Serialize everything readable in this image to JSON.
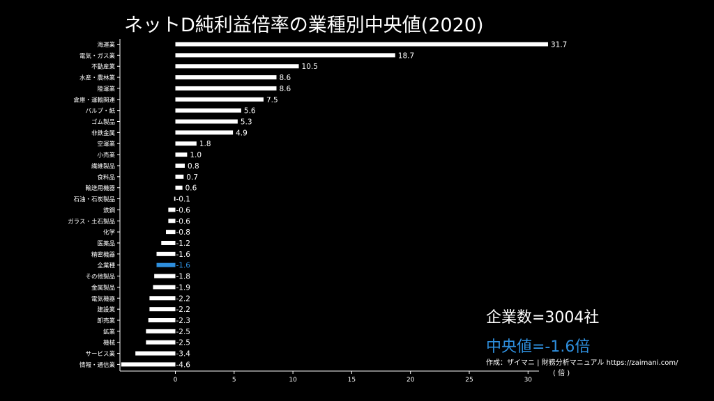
{
  "title": "ネットD純利益倍率の業種別中央値(2020)",
  "stats": {
    "company_count": "企業数=3004社",
    "median": "中央値=-1.6倍"
  },
  "credit": "作成：ザイマニ | 財務分析マニュアル https://zaimani.com/",
  "unit_label": "( 倍 )",
  "colors": {
    "background": "#000000",
    "bar": "#ffffff",
    "highlight": "#2e8fde"
  },
  "chart_data": {
    "type": "bar",
    "orientation": "horizontal",
    "highlight_category": "全業種",
    "categories": [
      "海運業",
      "電気・ガス業",
      "不動産業",
      "水産・農林業",
      "陸運業",
      "倉庫・運輸関連",
      "パルプ・紙",
      "ゴム製品",
      "非鉄金属",
      "空運業",
      "小売業",
      "繊維製品",
      "食料品",
      "輸送用機器",
      "石油・石炭製品",
      "鉄鋼",
      "ガラス・土石製品",
      "化学",
      "医薬品",
      "精密機器",
      "全業種",
      "その他製品",
      "金属製品",
      "電気機器",
      "建設業",
      "卸売業",
      "鉱業",
      "機械",
      "サービス業",
      "情報・通信業"
    ],
    "values": [
      31.7,
      18.7,
      10.5,
      8.6,
      8.6,
      7.5,
      5.6,
      5.3,
      4.9,
      1.8,
      1.0,
      0.8,
      0.7,
      0.6,
      -0.1,
      -0.6,
      -0.6,
      -0.8,
      -1.2,
      -1.6,
      -1.6,
      -1.8,
      -1.9,
      -2.2,
      -2.2,
      -2.3,
      -2.5,
      -2.5,
      -3.4,
      -4.6
    ],
    "value_labels": [
      "31.7",
      "18.7",
      "10.5",
      "8.6",
      "8.6",
      "7.5",
      "5.6",
      "5.3",
      "4.9",
      "1.8",
      "1.0",
      "0.8",
      "0.7",
      "0.6",
      "-0.1",
      "-0.6",
      "-0.6",
      "-0.8",
      "-1.2",
      "-1.6",
      "-1.6",
      "-1.8",
      "-1.9",
      "-2.2",
      "-2.2",
      "-2.3",
      "-2.5",
      "-2.5",
      "-3.4",
      "-4.6"
    ],
    "xticks": [
      0,
      5,
      10,
      15,
      20,
      25,
      30
    ],
    "xlim": [
      -4.6,
      31.7
    ],
    "grid": false
  }
}
